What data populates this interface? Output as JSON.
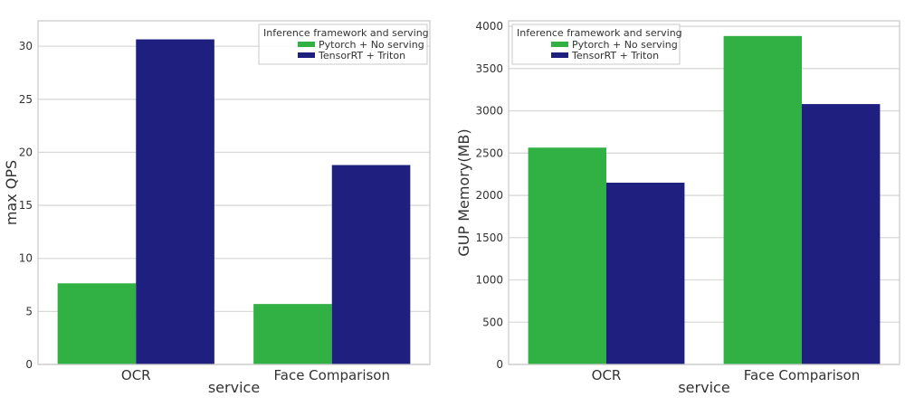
{
  "colors": {
    "series1": "#31b044",
    "series2": "#1f1f80",
    "grid": "#d9d9d9",
    "frame": "#cccccc"
  },
  "chart_data": [
    {
      "type": "bar",
      "categories": [
        "OCR",
        "Face Comparison"
      ],
      "series": [
        {
          "name": "Pytorch + No serving",
          "values": [
            7.65,
            5.7
          ]
        },
        {
          "name": "TensorRT + Triton",
          "values": [
            30.65,
            18.8
          ]
        }
      ],
      "xlabel": "service",
      "ylabel": "max QPS",
      "ylim": [
        0,
        32.4
      ],
      "yticks": [
        0,
        5,
        10,
        15,
        20,
        25,
        30
      ],
      "grid": true,
      "legend_title": "Inference framework and serving",
      "legend_position": "top-right"
    },
    {
      "type": "bar",
      "categories": [
        "OCR",
        "Face Comparison"
      ],
      "series": [
        {
          "name": "Pytorch + No serving",
          "values": [
            2565,
            3885
          ]
        },
        {
          "name": "TensorRT + Triton",
          "values": [
            2150,
            3080
          ]
        }
      ],
      "xlabel": "service",
      "ylabel": "GUP Memory(MB)",
      "ylim": [
        0,
        4065
      ],
      "yticks": [
        0,
        500,
        1000,
        1500,
        2000,
        2500,
        3000,
        3500,
        4000
      ],
      "grid": true,
      "legend_title": "Inference framework and serving",
      "legend_position": "top-left"
    }
  ]
}
